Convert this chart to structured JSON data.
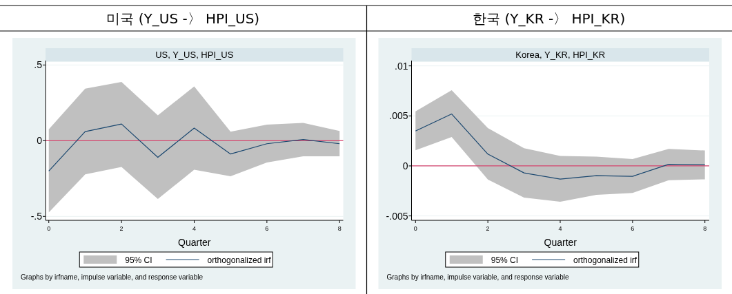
{
  "chart_data": [
    {
      "type": "line",
      "title": "미국 (Y_US -〉 HPI_US)",
      "subtitle": "US, Y_US, HPI_US",
      "xlabel": "Quarter",
      "x": [
        0,
        1,
        2,
        3,
        4,
        5,
        6,
        7,
        8
      ],
      "series": [
        {
          "name": "orthogonalized irf",
          "type": "line",
          "color": "#1a476f",
          "values": [
            -0.2,
            0.06,
            0.11,
            -0.11,
            0.083,
            -0.088,
            -0.02,
            0.008,
            -0.02
          ],
          "lower": [
            -0.474,
            -0.223,
            -0.174,
            -0.385,
            -0.192,
            -0.235,
            -0.144,
            -0.103,
            -0.103
          ],
          "upper": [
            0.076,
            0.344,
            0.388,
            0.168,
            0.358,
            0.059,
            0.106,
            0.118,
            0.064
          ]
        }
      ],
      "xlim": [
        -0.09,
        8.1
      ],
      "xticks": [
        0,
        2,
        4,
        6,
        8
      ],
      "ylim": [
        -0.526,
        0.52
      ],
      "yticks": [
        {
          "value": 0.5,
          "label": ".5"
        },
        0,
        {
          "value": -0.5,
          "label": "-.5"
        }
      ],
      "ref_lines": [
        {
          "axis": "y",
          "value": 0,
          "color": "#d5456e"
        }
      ],
      "grid": "y",
      "legend": "bottom",
      "annotations": [
        "95% CI",
        "Graphs by irfname, impulse variable, and response variable"
      ]
    },
    {
      "type": "line",
      "title": "한국 (Y_KR -〉 HPI_KR)",
      "subtitle": "Korea, Y_KR, HPI_KR",
      "xlabel": "Quarter",
      "x": [
        0,
        1,
        2,
        3,
        4,
        5,
        6,
        7,
        8
      ],
      "series": [
        {
          "name": "orthogonalized irf",
          "type": "line",
          "color": "#1a476f",
          "values": [
            0.00349,
            0.00519,
            0.00118,
            -0.0007,
            -0.00132,
            -0.00098,
            -0.00104,
            0.00016,
            0.00011
          ],
          "lower": [
            0.00156,
            0.00288,
            -0.00136,
            -0.00317,
            -0.00358,
            -0.0029,
            -0.0027,
            -0.00143,
            -0.00134
          ],
          "upper": [
            0.00546,
            0.00757,
            0.00379,
            0.00177,
            0.001,
            0.00093,
            0.00068,
            0.0017,
            0.00154
          ]
        }
      ],
      "xlim": [
        -0.11,
        8.12
      ],
      "xticks": [
        0,
        2,
        4,
        6,
        8
      ],
      "ylim": [
        -0.00544,
        0.01039
      ],
      "yticks": [
        {
          "value": 0.01,
          "label": ".01"
        },
        {
          "value": 0.005,
          "label": ".005"
        },
        0,
        {
          "value": -0.005,
          "label": "-.005"
        }
      ],
      "ref_lines": [
        {
          "axis": "y",
          "value": 0,
          "color": "#d5456e"
        }
      ],
      "grid": "y",
      "legend": "bottom",
      "annotations": [
        "95% CI",
        "Graphs by irfname, impulse variable, and response variable"
      ]
    }
  ]
}
